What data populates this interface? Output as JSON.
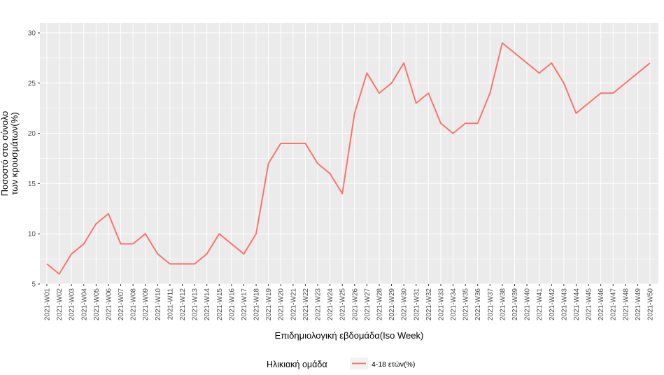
{
  "chart_data": {
    "type": "line",
    "x": [
      "2021-W01",
      "2021-W02",
      "2021-W03",
      "2021-W04",
      "2021-W05",
      "2021-W06",
      "2021-W07",
      "2021-W08",
      "2021-W09",
      "2021-W10",
      "2021-W11",
      "2021-W12",
      "2021-W13",
      "2021-W14",
      "2021-W15",
      "2021-W16",
      "2021-W17",
      "2021-W18",
      "2021-W19",
      "2021-W20",
      "2021-W21",
      "2021-W22",
      "2021-W23",
      "2021-W24",
      "2021-W25",
      "2021-W26",
      "2021-W27",
      "2021-W28",
      "2021-W29",
      "2021-W30",
      "2021-W31",
      "2021-W32",
      "2021-W33",
      "2021-W34",
      "2021-W35",
      "2021-W36",
      "2021-W37",
      "2021-W38",
      "2021-W39",
      "2021-W40",
      "2021-W41",
      "2021-W42",
      "2021-W43",
      "2021-W44",
      "2021-W45",
      "2021-W46",
      "2021-W47",
      "2021-W48",
      "2021-W49",
      "2021-W50"
    ],
    "series": [
      {
        "name": "4-18 ετών(%)",
        "color": "#F8766D",
        "values": [
          7,
          6,
          8,
          9,
          11,
          12,
          9,
          9,
          10,
          8,
          7,
          7,
          7,
          8,
          10,
          9,
          8,
          10,
          17,
          19,
          19,
          19,
          17,
          16,
          14,
          22,
          26,
          24,
          25,
          27,
          23,
          24,
          21,
          20,
          21,
          21,
          24,
          29,
          28,
          27,
          26,
          27,
          25,
          22,
          23,
          24,
          24,
          25,
          26,
          27
        ]
      }
    ],
    "xlabel": "Επιδημιολογική εβδομάδα(Iso Week)",
    "ylabel": [
      "Ποσοστό στο σύνολο",
      "των κρουσμάτων(%)"
    ],
    "ylim": [
      5,
      30
    ],
    "yticks": [
      5,
      10,
      15,
      20,
      25,
      30
    ],
    "grid": true,
    "legend": {
      "title": "Ηλικιακή ομάδα",
      "position": "bottom"
    },
    "colors": {
      "panel_background": "#EBEBEB",
      "grid": "#FFFFFF"
    }
  }
}
